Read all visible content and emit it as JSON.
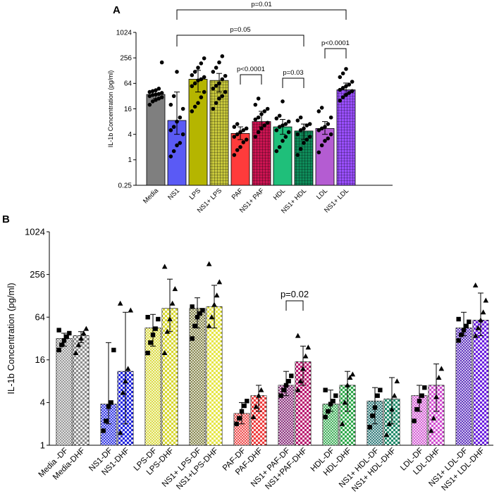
{
  "chart_data": [
    {
      "type": "bar",
      "panel": "A",
      "ylabel": "IL-1b Concentration (pg/ml)",
      "yscale": "log2",
      "ylim": [
        0.25,
        1024
      ],
      "yticks": [
        "0.25",
        "1",
        "4",
        "16",
        "64",
        "256",
        "1024"
      ],
      "categories": [
        "Media",
        "NS1",
        "LPS",
        "NS1+ LPS",
        "PAF",
        "NS1+ PAF",
        "HDL",
        "NS1+ HDL",
        "LDL",
        "NS1+ LDL"
      ],
      "values": [
        35,
        8.5,
        80,
        75,
        4.2,
        8,
        6,
        4.8,
        5.5,
        45
      ],
      "errors": [
        [
          28,
          45
        ],
        [
          4,
          40
        ],
        [
          40,
          130
        ],
        [
          40,
          110
        ],
        [
          3,
          6
        ],
        [
          6,
          14
        ],
        [
          4,
          9
        ],
        [
          3,
          7
        ],
        [
          4,
          8
        ],
        [
          35,
          65
        ]
      ],
      "colors": [
        "#7f7f7f",
        "#5a5af5",
        "#b5b500",
        "#c8c83c",
        "#ff3b3b",
        "#cc1452",
        "#1fbf7a",
        "#0f8c5a",
        "#b45cd2",
        "#9a4fff"
      ],
      "patterns": [
        "solid",
        "solid",
        "solid",
        "grid",
        "solid",
        "grid",
        "solid",
        "grid",
        "solid",
        "grid"
      ],
      "points": [
        [
          20,
          24,
          26,
          28,
          30,
          32,
          34,
          35,
          36,
          38,
          40,
          42,
          44,
          48,
          200
        ],
        [
          1.2,
          1.6,
          2.2,
          2.5,
          4,
          5,
          6,
          8,
          10,
          16,
          20,
          32,
          120
        ],
        [
          14,
          18,
          22,
          30,
          40,
          55,
          64,
          75,
          80,
          90,
          100,
          120,
          150,
          190,
          250
        ],
        [
          16,
          22,
          28,
          32,
          40,
          48,
          56,
          64,
          80,
          96,
          120,
          150,
          200,
          280
        ],
        [
          1.3,
          1.7,
          2,
          2.6,
          3,
          3.5,
          4,
          4.5,
          5,
          5.5,
          6,
          7
        ],
        [
          3.5,
          4.5,
          5.5,
          6.5,
          7.5,
          9,
          10,
          12,
          14,
          16,
          20,
          28
        ],
        [
          1.6,
          2,
          2.8,
          3.5,
          4.5,
          5,
          6,
          6.5,
          7,
          8,
          9.5,
          11,
          24
        ],
        [
          1.3,
          1.8,
          2.5,
          3,
          3.5,
          4,
          5,
          5.5,
          6.5,
          7,
          8.5,
          10
        ],
        [
          1.5,
          2.2,
          2.8,
          3.2,
          4,
          5,
          5.5,
          6,
          7,
          10,
          14,
          17
        ],
        [
          25,
          30,
          34,
          38,
          42,
          45,
          50,
          55,
          60,
          70,
          90,
          110,
          140
        ]
      ],
      "annotations": [
        {
          "text": "p=0.01",
          "from": "NS1",
          "to": "NS1+ LDL"
        },
        {
          "text": "p=0.05",
          "from": "NS1",
          "to": "NS1+ HDL"
        },
        {
          "text": "p<0.0001",
          "from": "PAF",
          "to": "NS1+ PAF"
        },
        {
          "text": "p=0.03",
          "from": "HDL",
          "to": "NS1+ HDL"
        },
        {
          "text": "p<0.0001",
          "from": "LDL",
          "to": "NS1+ LDL"
        }
      ]
    },
    {
      "type": "bar",
      "panel": "B",
      "ylabel": "IL-1b Concentration (pg/ml)",
      "yscale": "log2",
      "ylim": [
        1,
        1024
      ],
      "yticks": [
        "1",
        "4",
        "16",
        "64",
        "256",
        "1024"
      ],
      "categories": [
        "Media -DF",
        "Media-DHF",
        "NS1-DF",
        "NS1-DHF",
        "LPS-DF",
        "LPS-DHF",
        "NS1+ LPS-DF",
        "NS1+LPS-DHF",
        "PAF-DF",
        "PAF-DHF",
        "NS1+ PAF-DF",
        "NS1+PAF-DHF",
        "HDL-DF",
        "HDL-DHF",
        "NS1+ HDL-DF",
        "NS1+ HDL-DHF",
        "LDL-DF",
        "LDL-DHF",
        "NS1+ LDL-DF",
        "NS1+ LDL-DHF"
      ],
      "values": [
        32,
        35,
        3.8,
        11,
        45,
        85,
        85,
        90,
        2.8,
        5,
        7,
        15,
        3.8,
        7,
        4.2,
        4.5,
        5,
        7,
        45,
        58
      ],
      "errors": [
        [
          25,
          38
        ],
        [
          28,
          40
        ],
        [
          2,
          28
        ],
        [
          2,
          75
        ],
        [
          25,
          70
        ],
        [
          40,
          220
        ],
        [
          45,
          120
        ],
        [
          45,
          180
        ],
        [
          2,
          4
        ],
        [
          3,
          7
        ],
        [
          5,
          11
        ],
        [
          7,
          25
        ],
        [
          3,
          6
        ],
        [
          3,
          11
        ],
        [
          2,
          6.5
        ],
        [
          2,
          9
        ],
        [
          3,
          7
        ],
        [
          3,
          14
        ],
        [
          35,
          75
        ],
        [
          35,
          140
        ]
      ],
      "colors": [
        "#8c8c8c",
        "#8c8c8c",
        "#1f24e0",
        "#1f24e0",
        "#d8d830",
        "#d8d830",
        "#7a7a3a",
        "#e6e646",
        "#ee3b3b",
        "#ee3b3b",
        "#7d1a6e",
        "#b8116c",
        "#2ea84a",
        "#2ea84a",
        "#1d6e6e",
        "#1f8a6a",
        "#d04fd0",
        "#d04fd0",
        "#4e1eb8",
        "#6a1ee0"
      ],
      "markers": [
        "square",
        "triangle",
        "square",
        "triangle",
        "square",
        "triangle",
        "square",
        "triangle",
        "square",
        "triangle",
        "square",
        "triangle",
        "square",
        "triangle",
        "square",
        "triangle",
        "square",
        "triangle",
        "square",
        "triangle"
      ],
      "points": [
        [
          22,
          26,
          30,
          34,
          38,
          42
        ],
        [
          20,
          26,
          32,
          38,
          44
        ],
        [
          1.6,
          2.2,
          3.5,
          4,
          22
        ],
        [
          1.5,
          5.5,
          8,
          12,
          80,
          100
        ],
        [
          20,
          28,
          36,
          44,
          60,
          64
        ],
        [
          20,
          40,
          60,
          100,
          160,
          330
        ],
        [
          32,
          48,
          64,
          72,
          80,
          90
        ],
        [
          48,
          64,
          96,
          130,
          200,
          360
        ],
        [
          2,
          2.4,
          3,
          3.6,
          4.2
        ],
        [
          2.5,
          3.5,
          5,
          6
        ],
        [
          5,
          6,
          7,
          8,
          9.5
        ],
        [
          6,
          8,
          12,
          18,
          24,
          35
        ],
        [
          2.5,
          3,
          3.8,
          4.2,
          5,
          6
        ],
        [
          2,
          4,
          7,
          9,
          10
        ],
        [
          1.8,
          2.6,
          3.4,
          5,
          6
        ],
        [
          1.4,
          2,
          3.2,
          5,
          8
        ],
        [
          2.2,
          3.2,
          4.2,
          5,
          6.5
        ],
        [
          1.6,
          2.4,
          4.8,
          9,
          12
        ],
        [
          30,
          36,
          42,
          48,
          55,
          60
        ],
        [
          35,
          45,
          58,
          75,
          110,
          180
        ]
      ],
      "annotations": [
        {
          "text": "p=0.02",
          "from": "NS1+ PAF-DF",
          "to": "NS1+PAF-DHF"
        }
      ]
    }
  ],
  "panels": {
    "a_label": "A",
    "b_label": "B"
  }
}
